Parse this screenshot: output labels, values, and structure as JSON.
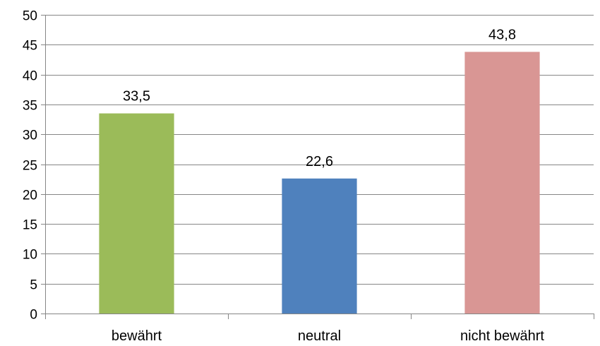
{
  "chart_data": {
    "type": "bar",
    "title": "",
    "xlabel": "",
    "ylabel": "",
    "categories": [
      "bewährt",
      "neutral",
      "nicht bewährt"
    ],
    "values": [
      33.5,
      22.6,
      43.8
    ],
    "data_labels": [
      "33,5",
      "22,6",
      "43,8"
    ],
    "colors": [
      "#9BBB59",
      "#4F81BD",
      "#D99694"
    ],
    "ylim": [
      0,
      50
    ],
    "yticks": [
      0,
      5,
      10,
      15,
      20,
      25,
      30,
      35,
      40,
      45,
      50
    ],
    "grid": true,
    "legend": "none"
  }
}
